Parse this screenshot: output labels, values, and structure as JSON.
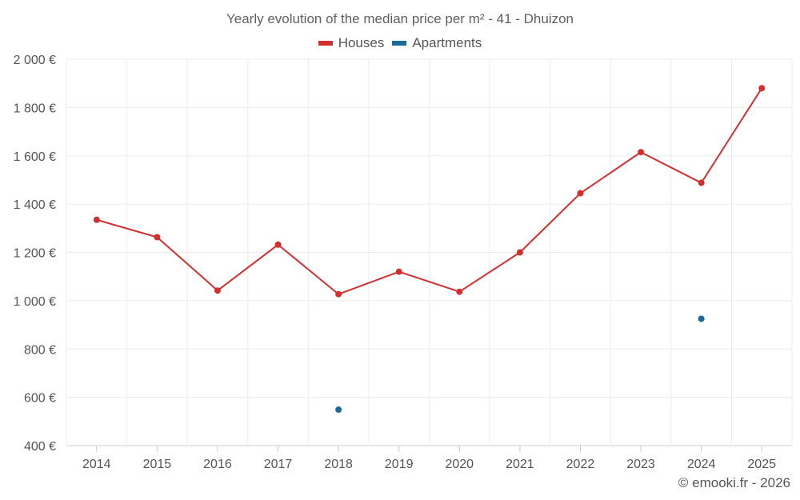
{
  "chart_data": {
    "type": "line",
    "title": "Yearly evolution of the median price per m² - 41 - Dhuizon",
    "categories": [
      "2014",
      "2015",
      "2016",
      "2017",
      "2018",
      "2019",
      "2020",
      "2021",
      "2022",
      "2023",
      "2024",
      "2025"
    ],
    "series": [
      {
        "name": "Houses",
        "color": "#d32f2f",
        "values": [
          1335,
          1263,
          1042,
          1232,
          1027,
          1120,
          1037,
          1200,
          1445,
          1615,
          1488,
          1880
        ]
      },
      {
        "name": "Apartments",
        "color": "#1a6b9a",
        "values": [
          null,
          null,
          null,
          null,
          549,
          null,
          null,
          null,
          null,
          null,
          925,
          null
        ]
      }
    ],
    "yticks": [
      400,
      600,
      800,
      1000,
      1200,
      1400,
      1600,
      1800,
      2000
    ],
    "ytick_labels": [
      "400 €",
      "600 €",
      "800 €",
      "1 000 €",
      "1 200 €",
      "1 400 €",
      "1 600 €",
      "1 800 €",
      "2 000 €"
    ],
    "ylim": [
      400,
      2000
    ],
    "xlabel": "",
    "ylabel": "",
    "grid": true,
    "legend_position": "top-center"
  },
  "watermark": "© emooki.fr - 2026"
}
